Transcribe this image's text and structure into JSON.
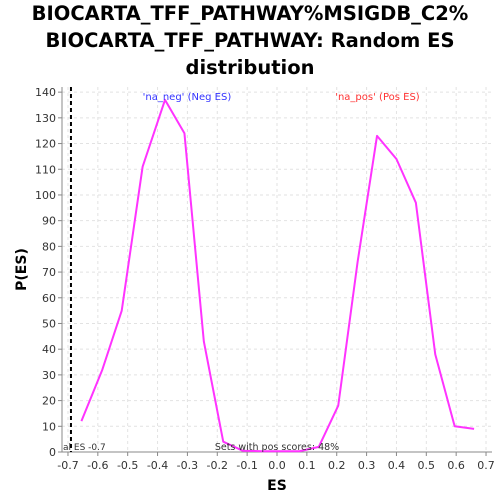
{
  "chart_data": {
    "type": "line",
    "title_lines": [
      "BIOCARTA_TFF_PATHWAY%MSIGDB_C2%",
      "BIOCARTA_TFF_PATHWAY: Random ES",
      "distribution"
    ],
    "xlabel": "ES",
    "ylabel": "P(ES)",
    "xlim": [
      -0.72,
      0.72
    ],
    "ylim": [
      0,
      142
    ],
    "x_ticks": [
      -0.7,
      -0.6,
      -0.5,
      -0.4,
      -0.3,
      -0.2,
      -0.1,
      0.0,
      0.1,
      0.2,
      0.3,
      0.4,
      0.5,
      0.6,
      0.7
    ],
    "x_tick_labels": [
      "-0.7",
      "-0.6",
      "-0.5",
      "-0.4",
      "-0.3",
      "-0.2",
      "-0.1",
      "0.0",
      "0.1",
      "0.2",
      "0.3",
      "0.4",
      "0.5",
      "0.6",
      "0.7"
    ],
    "y_ticks": [
      0,
      10,
      20,
      30,
      40,
      50,
      60,
      70,
      80,
      90,
      100,
      110,
      120,
      130,
      140
    ],
    "y_tick_labels": [
      "0",
      "10",
      "20",
      "30",
      "40",
      "50",
      "60",
      "70",
      "80",
      "90",
      "100",
      "110",
      "120",
      "130",
      "140"
    ],
    "grid": true,
    "series": [
      {
        "color": "#ff33ff",
        "x": [
          -0.655,
          -0.585,
          -0.52,
          -0.45,
          -0.375,
          -0.31,
          -0.245,
          -0.18,
          -0.115,
          -0.05,
          0.01,
          0.075,
          0.14,
          0.205,
          0.27,
          0.335,
          0.4,
          0.465,
          0.53,
          0.595,
          0.66
        ],
        "y": [
          12,
          32,
          55,
          111,
          137,
          124,
          43,
          4,
          0.5,
          0.3,
          0.3,
          0.3,
          2,
          18,
          74,
          123,
          114,
          97,
          38,
          10,
          9
        ]
      }
    ],
    "reference_line": {
      "x": -0.69,
      "style": "dashed",
      "color": "#000000",
      "label": "al ES -0.7"
    },
    "annotations": {
      "neg_label": "'na_neg' (Neg ES)",
      "neg_color": "#3333ff",
      "pos_label": "'na_pos' (Pos ES)",
      "pos_color": "#ff3333",
      "bottom_note": "Sets with pos scores: 48%"
    }
  }
}
